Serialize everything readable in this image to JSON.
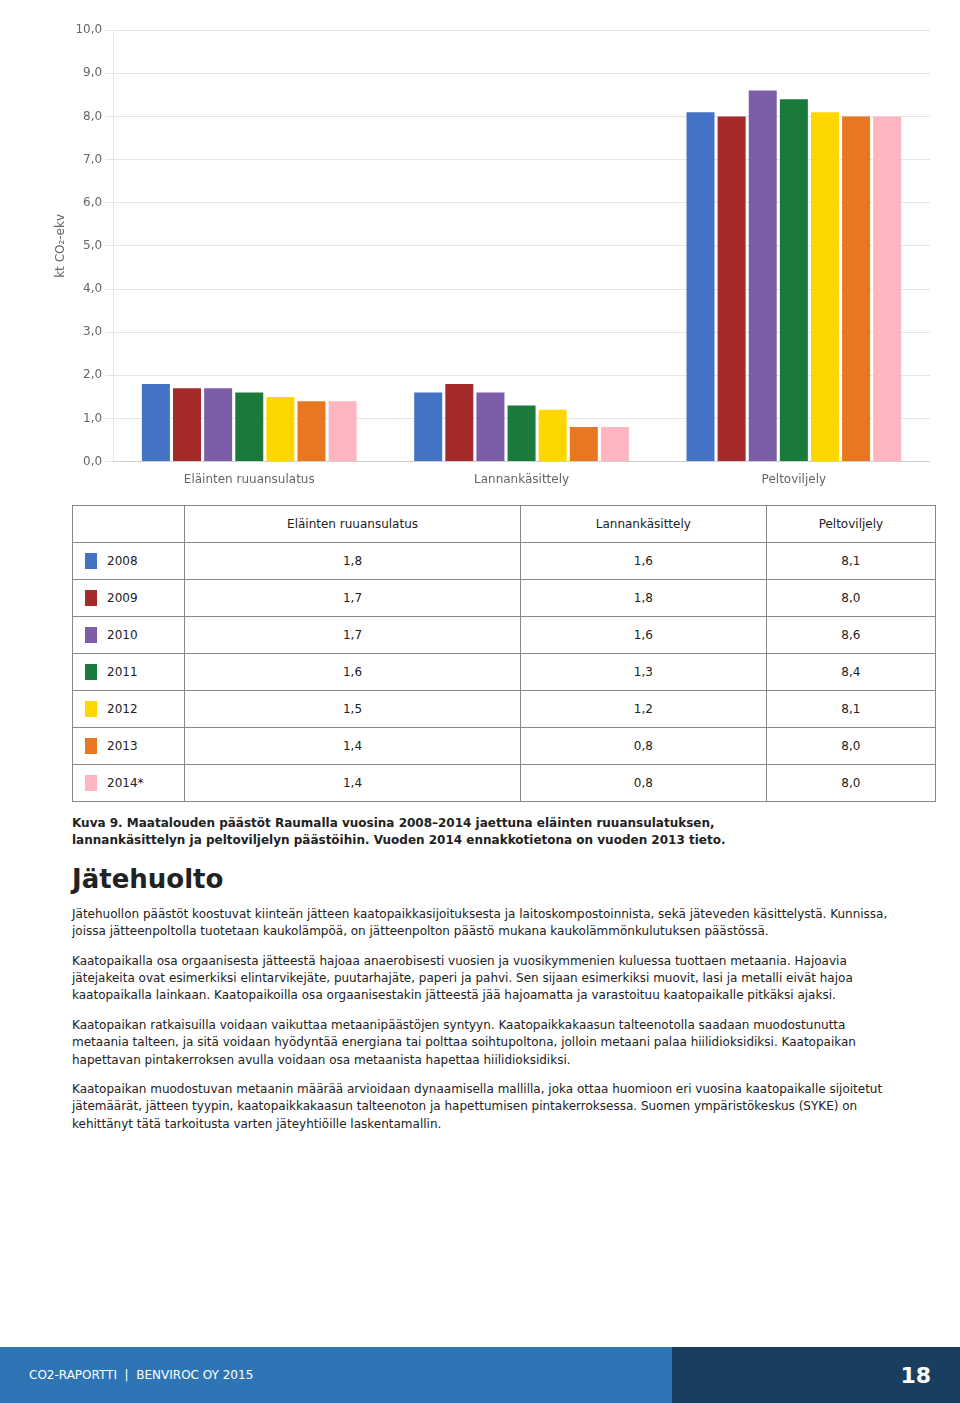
{
  "chart_data": {
    "type": "bar",
    "categories": [
      "Eläinten ruuansulatus",
      "Lannankäsittely",
      "Peltoviljely"
    ],
    "series": [
      {
        "name": "2008",
        "color": "#4472C4",
        "values": [
          1.8,
          1.6,
          8.1
        ]
      },
      {
        "name": "2009",
        "color": "#A52A2A",
        "values": [
          1.7,
          1.8,
          8.0
        ]
      },
      {
        "name": "2010",
        "color": "#7B5EA7",
        "values": [
          1.7,
          1.6,
          8.6
        ]
      },
      {
        "name": "2011",
        "color": "#1A7A3C",
        "values": [
          1.6,
          1.3,
          8.4
        ]
      },
      {
        "name": "2012",
        "color": "#FFD700",
        "values": [
          1.5,
          1.2,
          8.1
        ]
      },
      {
        "name": "2013",
        "color": "#E87722",
        "values": [
          1.4,
          0.8,
          8.0
        ]
      },
      {
        "name": "2014*",
        "color": "#FFB6C1",
        "values": [
          1.4,
          0.8,
          8.0
        ]
      }
    ],
    "ylabel": "kt CO₂-ekv",
    "ylim": [
      0,
      10.0
    ],
    "yticks": [
      {
        "value": 0,
        "label": "0,0"
      },
      {
        "value": 1,
        "label": "1,0"
      },
      {
        "value": 2,
        "label": "2,0"
      },
      {
        "value": 3,
        "label": "3,0"
      },
      {
        "value": 4,
        "label": "4,0"
      },
      {
        "value": 5,
        "label": "5,0"
      },
      {
        "value": 6,
        "label": "6,0"
      },
      {
        "value": 7,
        "label": "7,0"
      },
      {
        "value": 8,
        "label": "8,0"
      },
      {
        "value": 9,
        "label": "9,0"
      },
      {
        "value": 10,
        "label": "10,0"
      }
    ],
    "grid": true
  },
  "table_rows": [
    [
      "2008",
      "1,8",
      "1,6",
      "8,1"
    ],
    [
      "2009",
      "1,7",
      "1,8",
      "8,0"
    ],
    [
      "2010",
      "1,7",
      "1,6",
      "8,6"
    ],
    [
      "2011",
      "1,6",
      "1,3",
      "8,4"
    ],
    [
      "2012",
      "1,5",
      "1,2",
      "8,1"
    ],
    [
      "2013",
      "1,4",
      "0,8",
      "8,0"
    ],
    [
      "2014*",
      "1,4",
      "0,8",
      "8,0"
    ]
  ],
  "caption": "Kuva 9. Maatalouden päästöt Raumalla vuosina 2008–2014 jaettuna eläinten ruuansulatuksen,\nlannankäsittelyn ja peltoviljelyn päästöihin. Vuoden 2014 ennakkotietona on vuoden 2013 tieto.",
  "section_title": "Jätehuolto",
  "paragraphs": [
    "Jätehuollon päästöt koostuvat kiinteän jätteen kaatopaikkasijoituksesta ja laitoskompostoinnista, sekä jäteveden käsittelystä. Kunnissa, joissa jätteenpoltolla tuotetaan kaukolämpöä, on jätteenpolton päästö mukana kaukolämmönkulutuksen päästössä.",
    "Kaatopaikalla osa orgaanisesta jätteestä hajoaa anaerobisesti vuosien ja vuosikymmenien kuluessa tuottaen metaania. Hajoavia jätejakeita ovat esimerkiksi elintarvikejäte, puutarhajäte, paperi ja pahvi. Sen sijaan esimerkiksi muovit, lasi ja metalli eivät hajoa kaatopaikalla lainkaan. Kaatopaikoilla osa orgaanisestakin jätteestä jää hajoamatta ja varastoituu kaatopaikalle pitkäksi ajaksi.",
    "Kaatopaikan ratkaisuilla voidaan vaikuttaa metaanipäästöjen syntyyn. Kaatopaikkakaasun talteenotolla saadaan muodostunutta metaania talteen, ja sitä voidaan hyödyntää energiana tai polttaa soihtupoltona, jolloin metaani palaa hiilidioksidiksi. Kaatopaikan hapettavan pintakerroksen avulla voidaan osa metaanista hapettaa hiilidioksidiksi.",
    "Kaatopaikan muodostuvan metaanin määrää arvioidaan dynaamisella mallilla, joka ottaa huomioon eri vuosina kaatopaikalle sijoitetut jätemäärät, jätteen tyypin, kaatopaikkakaasun talteenoton ja hapettumisen pintakerroksessa. Suomen ympäristökeskus (SYKE) on kehittänyt tätä tarkoitusta varten jäteyhtiöille laskentamallin."
  ],
  "footer_left": "CO2-RAPORTTI  |  BENVIROC OY 2015",
  "footer_right": "18"
}
